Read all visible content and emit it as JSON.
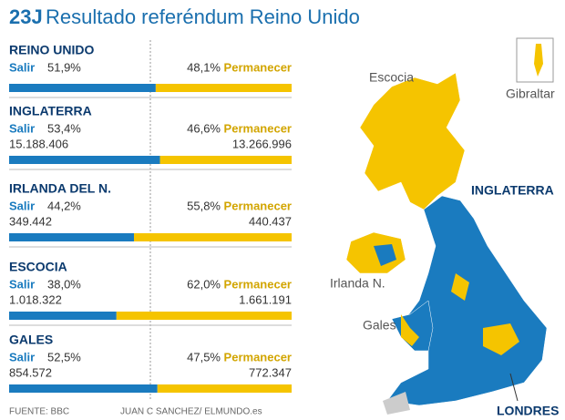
{
  "title_tag": "23J",
  "title": "Resultado referéndum Reino Unido",
  "leave_label": "Salir",
  "remain_label": "Permanecer",
  "regions": [
    {
      "name": "REINO UNIDO",
      "leave": {
        "value": 51.9,
        "label": "51,9%"
      },
      "remain": {
        "value": 48.1,
        "label": "48,1%"
      }
    },
    {
      "name": "INGLATERRA",
      "leave": {
        "value": 53.4,
        "label": "53,4%"
      },
      "remain": {
        "value": 46.6,
        "label": "46,6%"
      },
      "leave_votes": "15.188.406",
      "remain_votes": "13.266.996"
    },
    {
      "name": "IRLANDA DEL N.",
      "leave": {
        "value": 44.2,
        "label": "44,2%"
      },
      "remain": {
        "value": 55.8,
        "label": "55,8%"
      },
      "leave_votes": "349.442",
      "remain_votes": "440.437"
    },
    {
      "name": "ESCOCIA",
      "leave": {
        "value": 38.0,
        "label": "38,0%"
      },
      "remain": {
        "value": 62.0,
        "label": "62,0%"
      },
      "leave_votes": "1.018.322",
      "remain_votes": "1.661.191"
    },
    {
      "name": "GALES",
      "leave": {
        "value": 52.5,
        "label": "52,5%"
      },
      "remain": {
        "value": 47.5,
        "label": "47,5%"
      },
      "leave_votes": "854.572",
      "remain_votes": "772.347"
    }
  ],
  "map": {
    "labels": [
      "Escocia",
      "Gibraltar",
      "INGLATERRA",
      "Irlanda N.",
      "Gales",
      "LONDRES"
    ]
  },
  "source": "FUENTE: BBC",
  "credit": "JUAN C SANCHEZ/ ELMUNDO.es"
}
